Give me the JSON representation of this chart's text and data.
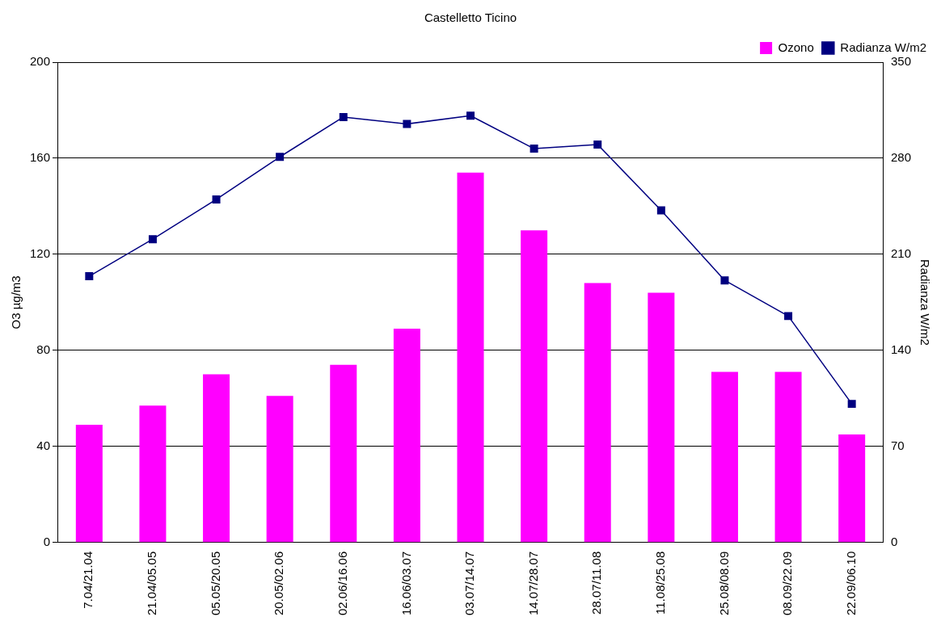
{
  "chart_data": {
    "type": "bar",
    "title": "Castelletto Ticino",
    "ylabel": "O3 µg/m3",
    "y2label": "Radianza W/m2",
    "categories": [
      "7.04/21.04",
      "21.04/05.05",
      "05.05/20.05",
      "20.05/02.06",
      "02.06/16.06",
      "16.06/03.07",
      "03.07/14.07",
      "14.07/28.07",
      "28.07/11.08",
      "11.08/25.08",
      "25.08/08.09",
      "08.09/22.09",
      "22.09/06.10"
    ],
    "series": [
      {
        "name": "Ozono",
        "color": "#ff00ff",
        "values": [
          49,
          57,
          70,
          61,
          74,
          89,
          154,
          130,
          108,
          104,
          71,
          71,
          45
        ]
      },
      {
        "name": "Radianza W/m2",
        "type": "line",
        "axis": "y2",
        "color": "#000080",
        "marker": "square",
        "values": [
          194,
          221,
          250,
          281,
          310,
          305,
          311,
          287,
          290,
          242,
          191,
          165,
          101
        ]
      }
    ],
    "ylim": [
      0,
      200
    ],
    "yticks": [
      0,
      40,
      80,
      120,
      160,
      200
    ],
    "y2lim": [
      0,
      350
    ],
    "y2ticks": [
      0,
      70,
      140,
      210,
      280,
      350
    ],
    "grid": "y",
    "legend": "top right"
  }
}
